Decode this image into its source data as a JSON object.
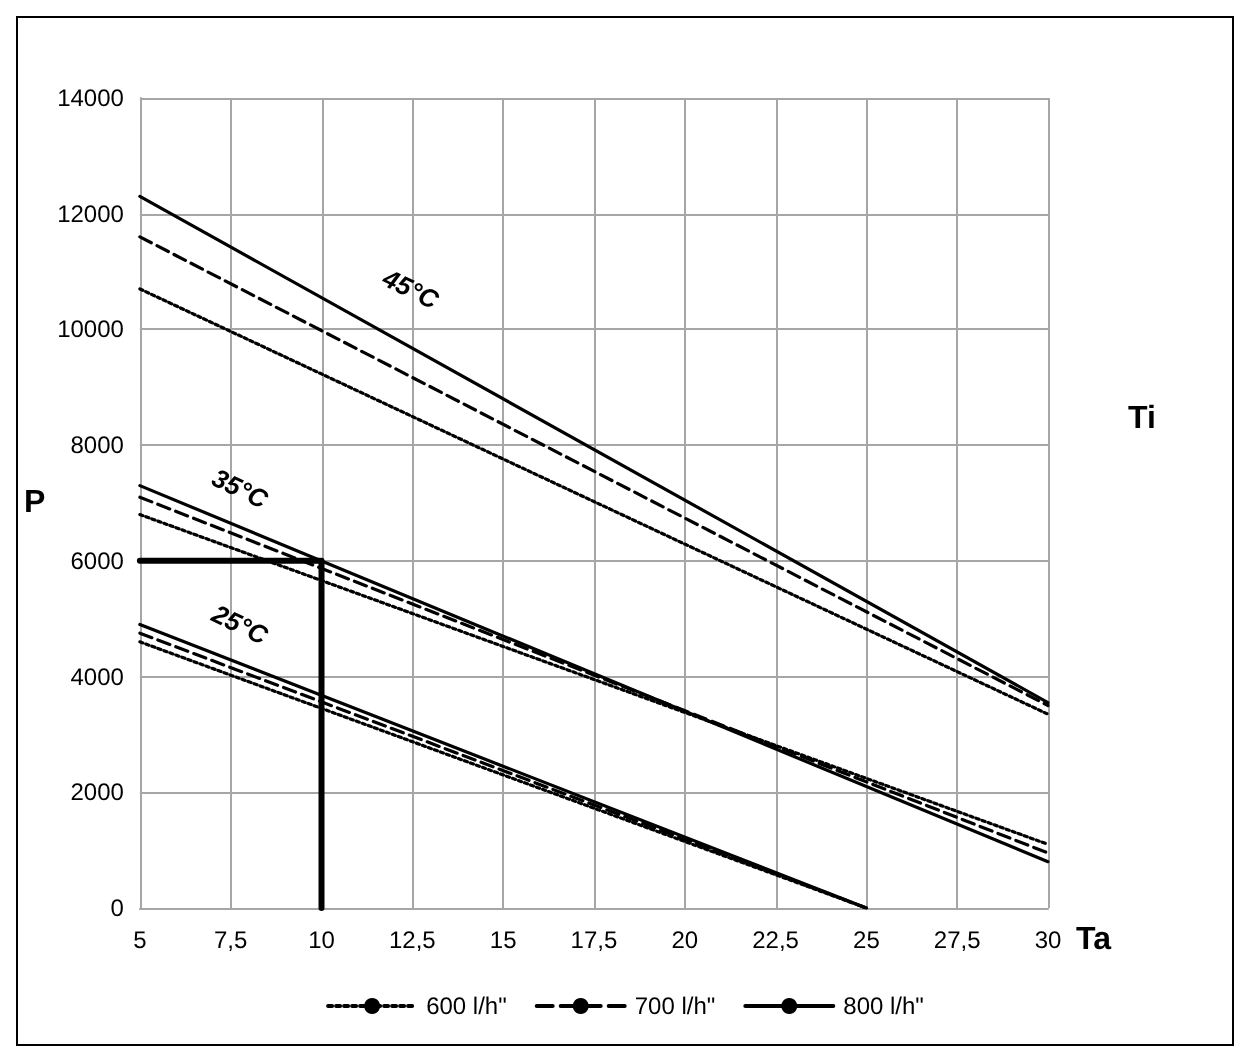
{
  "chart_data": {
    "type": "line",
    "xlabel": "Ta",
    "ylabel": "P",
    "xlim": [
      5,
      30
    ],
    "xticks": [
      5,
      {
        "value": 7.5,
        "label": "7,5"
      },
      10,
      {
        "value": 12.5,
        "label": "12,5"
      },
      15,
      {
        "value": 17.5,
        "label": "17,5"
      },
      20,
      {
        "value": 22.5,
        "label": "22,5"
      },
      25,
      {
        "value": 27.5,
        "label": "27,5"
      },
      30
    ],
    "ylim": [
      0,
      14000
    ],
    "yticks": [
      0,
      2000,
      4000,
      6000,
      8000,
      10000,
      12000,
      14000
    ],
    "grid": true,
    "legend": "bottom",
    "marker": "none",
    "series": [
      {
        "name": "600 l/h\"",
        "color": "#000000",
        "line_style": "dotted",
        "x": [
          5,
          30
        ],
        "values": [
          10700,
          3350
        ]
      },
      {
        "name": "700 l/h\"",
        "color": "#000000",
        "line_style": "dashed",
        "x": [
          5,
          30
        ],
        "values": [
          11600,
          3500
        ]
      },
      {
        "name": "800 l/h\"",
        "color": "#000000",
        "line_style": "solid",
        "x": [
          5,
          30
        ],
        "values": [
          12300,
          3550
        ]
      },
      {
        "color": "#000000",
        "line_style": "dotted",
        "x": [
          5,
          30
        ],
        "values": [
          6800,
          1100
        ]
      },
      {
        "color": "#000000",
        "line_style": "dashed",
        "x": [
          5,
          30
        ],
        "values": [
          7100,
          950
        ]
      },
      {
        "color": "#000000",
        "line_style": "solid",
        "x": [
          5,
          30
        ],
        "values": [
          7300,
          800
        ]
      },
      {
        "color": "#000000",
        "line_style": "dotted",
        "x": [
          5,
          25
        ],
        "values": [
          4600,
          0
        ]
      },
      {
        "color": "#000000",
        "line_style": "dashed",
        "x": [
          5,
          25
        ],
        "values": [
          4750,
          0
        ]
      },
      {
        "color": "#000000",
        "line_style": "solid",
        "x": [
          5,
          25
        ],
        "values": [
          4900,
          0
        ]
      },
      {
        "color": "#000000",
        "line_style": "solid",
        "x": [
          5,
          10,
          10
        ],
        "values": [
          6000,
          6000,
          0
        ]
      }
    ],
    "annotations": [
      "45°C",
      "35°C",
      "25°C",
      "Ti"
    ]
  }
}
